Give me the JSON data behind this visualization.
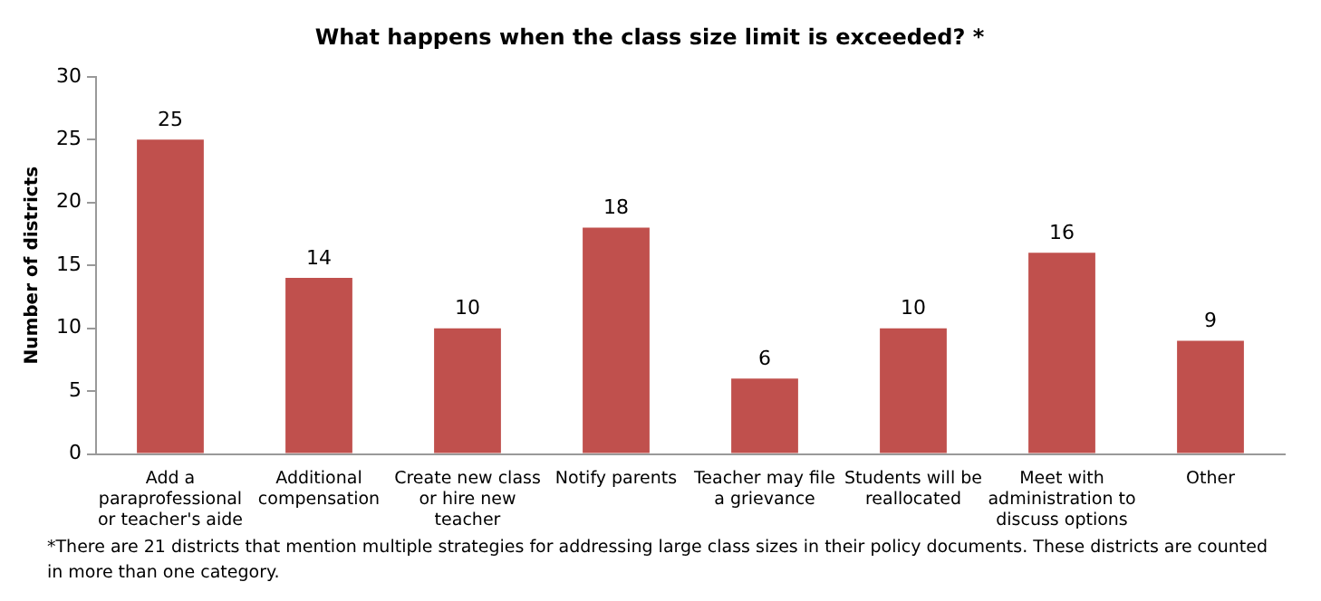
{
  "chart_data": {
    "type": "bar",
    "title": "What happens when the class size limit is exceeded? *",
    "ylabel": "Number of districts",
    "categories": [
      "Add a paraprofessional or teacher's aide",
      "Additional compensation",
      "Create new class or hire new teacher",
      "Notify parents",
      "Teacher may file a grievance",
      "Students will be reallocated",
      "Meet with administration to discuss options",
      "Other"
    ],
    "values": [
      25,
      14,
      10,
      18,
      6,
      10,
      16,
      9
    ],
    "color": "#c0504d",
    "ylim": [
      0,
      30
    ],
    "yticks": [
      0,
      5,
      10,
      15,
      20,
      25,
      30
    ],
    "grid": false,
    "legend": false,
    "data_labels": true,
    "annotations": [
      "*There are 21 districts that mention multiple strategies for addressing large class sizes in their policy documents. These districts are counted in more than one category."
    ]
  }
}
